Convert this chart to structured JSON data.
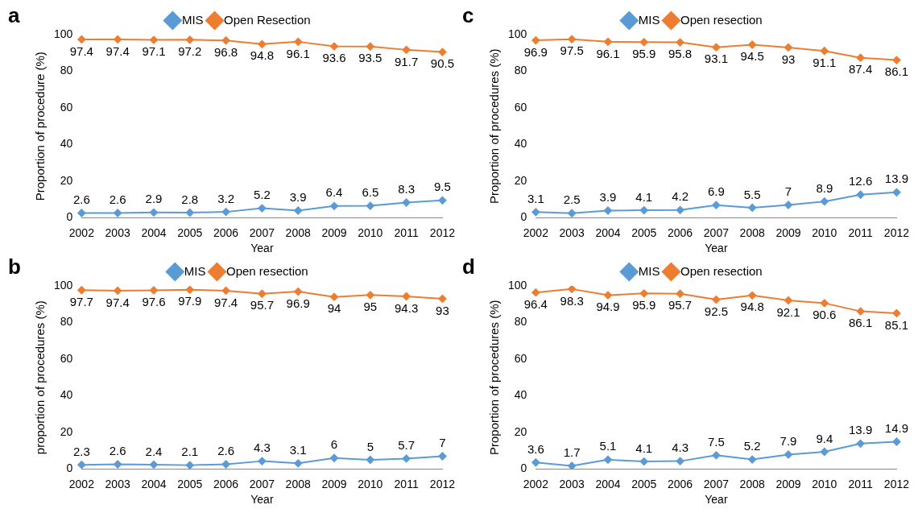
{
  "chart_data": [
    {
      "type": "line",
      "title": "a",
      "xlabel": "Year",
      "ylabel": "Proportion of procedure (%)",
      "categories": [
        "2002",
        "2003",
        "2004",
        "2005",
        "2006",
        "2007",
        "2008",
        "2009",
        "2010",
        "2011",
        "2012"
      ],
      "ylim": [
        0,
        100
      ],
      "yticks": [
        0,
        20,
        40,
        60,
        80,
        100
      ],
      "grid": false,
      "legend": "top",
      "marker": "diamond",
      "data_labels": true,
      "series": [
        {
          "name": "MIS",
          "color": "#5b9bd5",
          "values": [
            2.6,
            2.6,
            2.9,
            2.8,
            3.2,
            5.2,
            3.9,
            6.4,
            6.5,
            8.3,
            9.5
          ]
        },
        {
          "name": "Open Resection",
          "color": "#ed7d31",
          "values": [
            97.4,
            97.4,
            97.1,
            97.2,
            96.8,
            94.8,
            96.1,
            93.6,
            93.5,
            91.7,
            90.5
          ]
        }
      ]
    },
    {
      "type": "line",
      "title": "c",
      "xlabel": "Year",
      "ylabel": "Proportion of procedures (%)",
      "categories": [
        "2002",
        "2003",
        "2004",
        "2005",
        "2006",
        "2007",
        "2008",
        "2009",
        "2010",
        "2011",
        "2012"
      ],
      "ylim": [
        0,
        100
      ],
      "yticks": [
        0,
        20,
        40,
        60,
        80,
        100
      ],
      "grid": false,
      "legend": "top",
      "marker": "diamond",
      "data_labels": true,
      "series": [
        {
          "name": "MIS",
          "color": "#5b9bd5",
          "values": [
            3.1,
            2.5,
            3.9,
            4.1,
            4.2,
            6.9,
            5.5,
            7,
            8.9,
            12.6,
            13.9
          ]
        },
        {
          "name": "Open resection",
          "color": "#ed7d31",
          "values": [
            96.9,
            97.5,
            96.1,
            95.9,
            95.8,
            93.1,
            94.5,
            93,
            91.1,
            87.4,
            86.1
          ]
        }
      ]
    },
    {
      "type": "line",
      "title": "b",
      "xlabel": "Year",
      "ylabel": "proportion of procedures (%)",
      "categories": [
        "2002",
        "2003",
        "2004",
        "2005",
        "2006",
        "2007",
        "2008",
        "2009",
        "2010",
        "2011",
        "2012"
      ],
      "ylim": [
        0,
        100
      ],
      "yticks": [
        0,
        20,
        40,
        60,
        80,
        100
      ],
      "grid": false,
      "legend": "top",
      "marker": "diamond",
      "data_labels": true,
      "series": [
        {
          "name": "MIS",
          "color": "#5b9bd5",
          "values": [
            2.3,
            2.6,
            2.4,
            2.1,
            2.6,
            4.3,
            3.1,
            6,
            5,
            5.7,
            7
          ]
        },
        {
          "name": "Open resection",
          "color": "#ed7d31",
          "values": [
            97.7,
            97.4,
            97.6,
            97.9,
            97.4,
            95.7,
            96.9,
            94,
            95,
            94.3,
            93
          ]
        }
      ]
    },
    {
      "type": "line",
      "title": "d",
      "xlabel": "Year",
      "ylabel": "Proportion of procedures (%)",
      "categories": [
        "2002",
        "2003",
        "2004",
        "2005",
        "2006",
        "2007",
        "2008",
        "2009",
        "2010",
        "2011",
        "2012"
      ],
      "ylim": [
        0,
        100
      ],
      "yticks": [
        0,
        20,
        40,
        60,
        80,
        100
      ],
      "grid": false,
      "legend": "top",
      "marker": "diamond",
      "data_labels": true,
      "series": [
        {
          "name": "MIS",
          "color": "#5b9bd5",
          "values": [
            3.6,
            1.7,
            5.1,
            4.1,
            4.3,
            7.5,
            5.2,
            7.9,
            9.4,
            13.9,
            14.9
          ]
        },
        {
          "name": "Open resection",
          "color": "#ed7d31",
          "values": [
            96.4,
            98.3,
            94.9,
            95.9,
            95.7,
            92.5,
            94.8,
            92.1,
            90.6,
            86.1,
            85.1
          ]
        }
      ]
    }
  ]
}
